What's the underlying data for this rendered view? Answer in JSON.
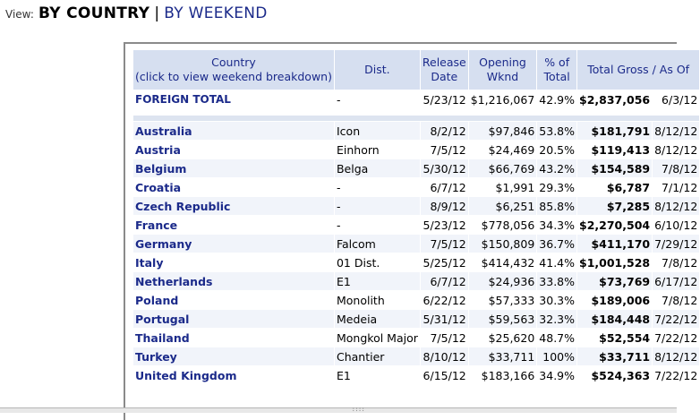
{
  "view": {
    "label": "View:",
    "active": "BY COUNTRY",
    "separator": "|",
    "alternate": "BY WEEKEND"
  },
  "table": {
    "headers": {
      "country_line1": "Country",
      "country_line2": "(click to view weekend breakdown)",
      "dist": "Dist.",
      "release_line1": "Release",
      "release_line2": "Date",
      "opening_line1": "Opening",
      "opening_line2": "Wknd",
      "pct_line1": "% of",
      "pct_line2": "Total",
      "gross": "Total Gross / As Of"
    },
    "total": {
      "country": "FOREIGN TOTAL",
      "dist": "-",
      "release": "5/23/12",
      "opening": "$1,216,067",
      "pct": "42.9%",
      "gross": "$2,837,056",
      "asof": "6/3/12"
    },
    "rows": [
      {
        "country": "Australia",
        "dist": "Icon",
        "release": "8/2/12",
        "opening": "$97,846",
        "pct": "53.8%",
        "gross": "$181,791",
        "asof": "8/12/12"
      },
      {
        "country": "Austria",
        "dist": "Einhorn",
        "release": "7/5/12",
        "opening": "$24,469",
        "pct": "20.5%",
        "gross": "$119,413",
        "asof": "8/12/12"
      },
      {
        "country": "Belgium",
        "dist": "Belga",
        "release": "5/30/12",
        "opening": "$66,769",
        "pct": "43.2%",
        "gross": "$154,589",
        "asof": "7/8/12"
      },
      {
        "country": "Croatia",
        "dist": "-",
        "release": "6/7/12",
        "opening": "$1,991",
        "pct": "29.3%",
        "gross": "$6,787",
        "asof": "7/1/12"
      },
      {
        "country": "Czech Republic",
        "dist": "-",
        "release": "8/9/12",
        "opening": "$6,251",
        "pct": "85.8%",
        "gross": "$7,285",
        "asof": "8/12/12"
      },
      {
        "country": "France",
        "dist": "-",
        "release": "5/23/12",
        "opening": "$778,056",
        "pct": "34.3%",
        "gross": "$2,270,504",
        "asof": "6/10/12"
      },
      {
        "country": "Germany",
        "dist": "Falcom",
        "release": "7/5/12",
        "opening": "$150,809",
        "pct": "36.7%",
        "gross": "$411,170",
        "asof": "7/29/12"
      },
      {
        "country": "Italy",
        "dist": "01 Dist.",
        "release": "5/25/12",
        "opening": "$414,432",
        "pct": "41.4%",
        "gross": "$1,001,528",
        "asof": "7/8/12"
      },
      {
        "country": "Netherlands",
        "dist": "E1",
        "release": "6/7/12",
        "opening": "$24,936",
        "pct": "33.8%",
        "gross": "$73,769",
        "asof": "6/17/12"
      },
      {
        "country": "Poland",
        "dist": "Monolith",
        "release": "6/22/12",
        "opening": "$57,333",
        "pct": "30.3%",
        "gross": "$189,006",
        "asof": "7/8/12"
      },
      {
        "country": "Portugal",
        "dist": "Medeia",
        "release": "5/31/12",
        "opening": "$59,563",
        "pct": "32.3%",
        "gross": "$184,448",
        "asof": "7/22/12"
      },
      {
        "country": "Thailand",
        "dist": "Mongkol Major",
        "release": "7/5/12",
        "opening": "$25,620",
        "pct": "48.7%",
        "gross": "$52,554",
        "asof": "7/22/12"
      },
      {
        "country": "Turkey",
        "dist": "Chantier",
        "release": "8/10/12",
        "opening": "$33,711",
        "pct": "100%",
        "gross": "$33,711",
        "asof": "8/12/12"
      },
      {
        "country": "United Kingdom",
        "dist": "E1",
        "release": "6/15/12",
        "opening": "$183,166",
        "pct": "34.9%",
        "gross": "$524,363",
        "asof": "7/22/12"
      }
    ]
  },
  "colors": {
    "link_blue": "#1b2a8a",
    "header_bg": "#d6dff0",
    "alt_row_bg": "#f1f4fa"
  }
}
